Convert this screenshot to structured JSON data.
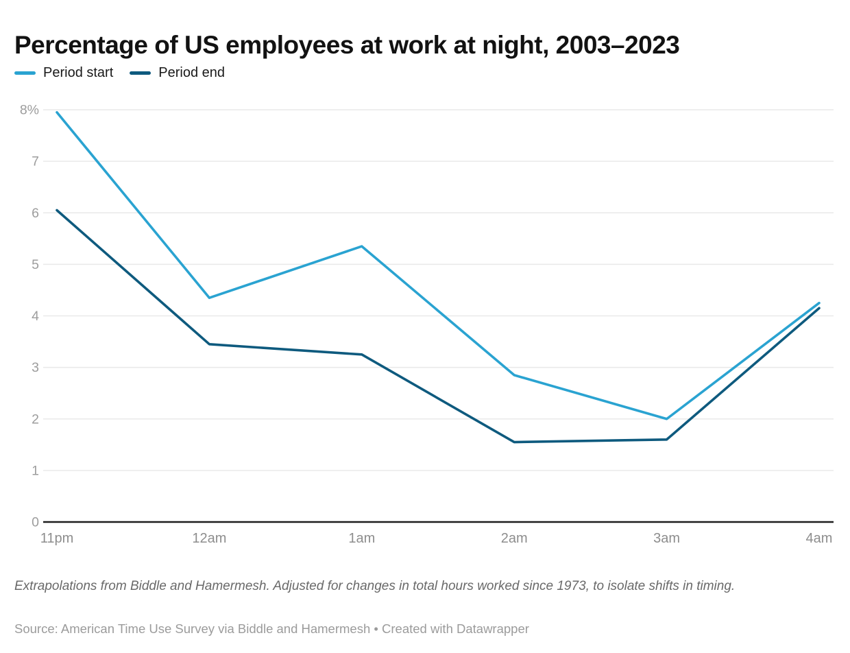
{
  "header": {
    "title": "Percentage of US employees at work at night, 2003–2023"
  },
  "chart_data": {
    "type": "line",
    "title": "Percentage of US employees at work at night, 2003–2023",
    "categories": [
      "11pm",
      "12am",
      "1am",
      "2am",
      "3am",
      "4am"
    ],
    "series": [
      {
        "name": "Period start",
        "color": "#2AA3D1",
        "values": [
          7.95,
          4.35,
          5.35,
          2.85,
          2.0,
          4.25
        ]
      },
      {
        "name": "Period end",
        "color": "#0E5A7E",
        "values": [
          6.05,
          3.45,
          3.25,
          1.55,
          1.6,
          4.15
        ]
      }
    ],
    "ylim": [
      0,
      8
    ],
    "yticks": [
      {
        "value": 0,
        "label": "0"
      },
      {
        "value": 1,
        "label": "1"
      },
      {
        "value": 2,
        "label": "2"
      },
      {
        "value": 3,
        "label": "3"
      },
      {
        "value": 4,
        "label": "4"
      },
      {
        "value": 5,
        "label": "5"
      },
      {
        "value": 6,
        "label": "6"
      },
      {
        "value": 7,
        "label": "7"
      },
      {
        "value": 8,
        "label": "8%"
      }
    ],
    "xlabel": "",
    "ylabel": "",
    "grid": "horizontal",
    "legend_position": "top-left"
  },
  "footer": {
    "note": "Extrapolations from Biddle and Hamermesh. Adjusted for changes in total hours worked since 1973, to isolate shifts in timing.",
    "source": "Source: American Time Use Survey via Biddle and Hamermesh • Created with Datawrapper"
  },
  "colors": {
    "series_start": "#2AA3D1",
    "series_end": "#0E5A7E",
    "gridline": "#e9e9e9",
    "baseline": "#1d1d1d",
    "ytick_label": "#9d9d9d",
    "xtick_label": "#8d8d8d",
    "title_text": "#121212",
    "note_text": "#696969",
    "source_text": "#9b9b9b"
  }
}
